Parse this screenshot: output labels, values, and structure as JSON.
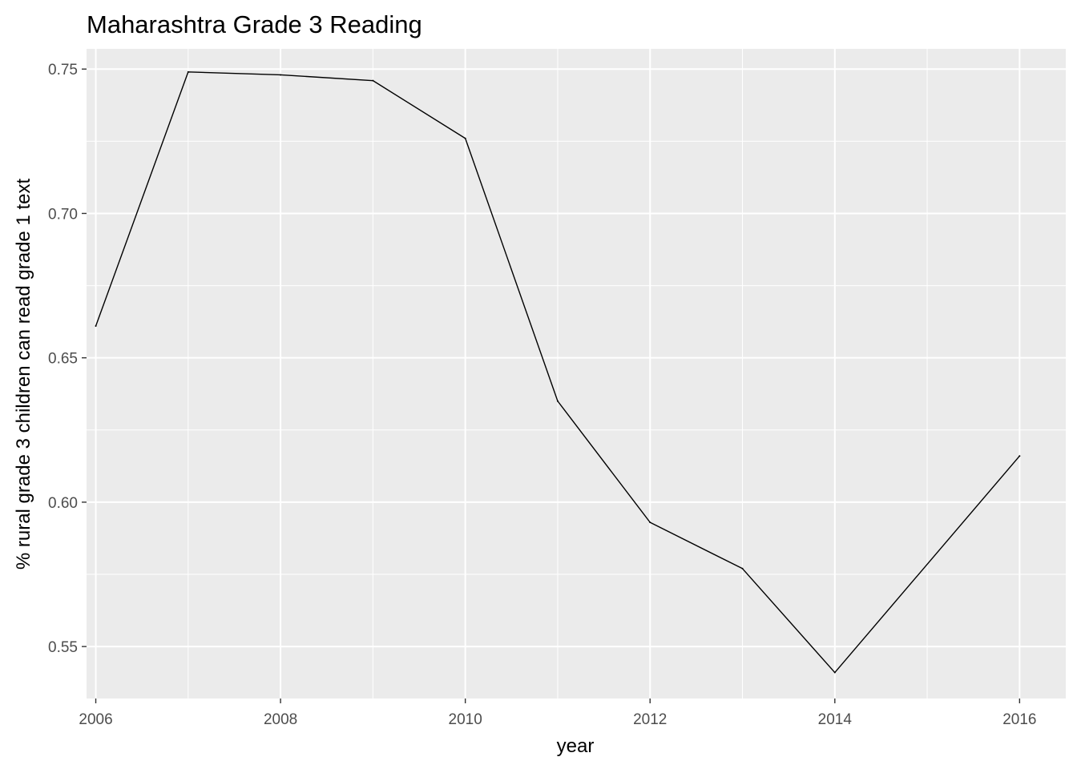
{
  "chart_data": {
    "type": "line",
    "title": "Maharashtra Grade 3 Reading",
    "xlabel": "year",
    "ylabel": "% rural grade 3 children can read grade 1 text",
    "x": [
      2006,
      2007,
      2008,
      2009,
      2010,
      2011,
      2012,
      2013,
      2014,
      2016
    ],
    "series": [
      {
        "values": [
          0.661,
          0.749,
          0.748,
          0.746,
          0.726,
          0.635,
          0.593,
          0.577,
          0.541,
          0.616
        ]
      }
    ],
    "x_ticks": [
      "2006",
      "2008",
      "2010",
      "2012",
      "2014",
      "2016"
    ],
    "y_ticks": [
      "0.55",
      "0.60",
      "0.65",
      "0.70",
      "0.75"
    ],
    "xlim": [
      2005.9,
      2016.5
    ],
    "ylim": [
      0.532,
      0.757
    ],
    "grid": true,
    "colors": {
      "panel": "#ebebeb",
      "grid": "#ffffff",
      "line": "#000000",
      "tick_label": "#4d4d4d"
    }
  }
}
